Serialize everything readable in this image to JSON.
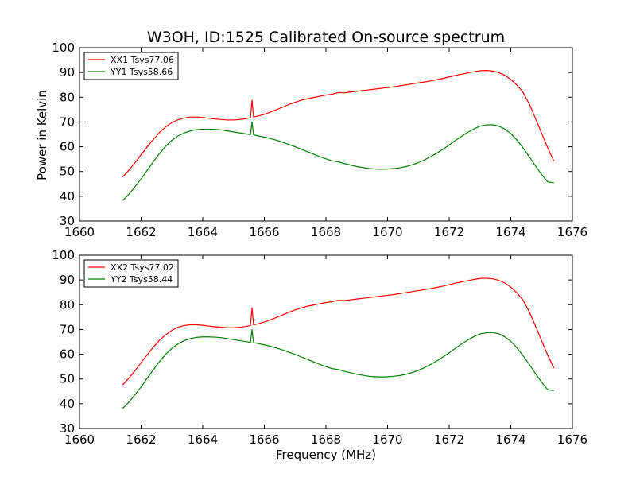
{
  "chart_data": [
    {
      "type": "line",
      "title": "W3OH, ID:1525 Calibrated On-source spectrum",
      "xlabel": "",
      "ylabel": "Power in Kelvin",
      "xlim": [
        1660,
        1676
      ],
      "ylim": [
        30,
        100
      ],
      "xticks": [
        1660,
        1662,
        1664,
        1666,
        1668,
        1670,
        1672,
        1674,
        1676
      ],
      "yticks": [
        30,
        40,
        50,
        60,
        70,
        80,
        90,
        100
      ],
      "legend_position": "top-left",
      "grid": false,
      "series": [
        {
          "name": "XX1 Tsys77.06",
          "color": "#ff0000",
          "x": [
            1661.4,
            1661.6,
            1661.8,
            1662.0,
            1662.2,
            1662.4,
            1662.6,
            1662.8,
            1663.0,
            1663.2,
            1663.4,
            1663.6,
            1663.8,
            1664.0,
            1664.2,
            1664.4,
            1664.6,
            1664.8,
            1665.0,
            1665.2,
            1665.4,
            1665.55,
            1665.6,
            1665.65,
            1665.8,
            1666.0,
            1666.2,
            1666.4,
            1666.6,
            1666.8,
            1667.0,
            1667.2,
            1667.4,
            1667.6,
            1667.8,
            1668.0,
            1668.2,
            1668.4,
            1668.6,
            1668.8,
            1669.0,
            1669.2,
            1669.4,
            1669.6,
            1669.8,
            1670.0,
            1670.2,
            1670.4,
            1670.6,
            1670.8,
            1671.0,
            1671.2,
            1671.4,
            1671.6,
            1671.8,
            1672.0,
            1672.2,
            1672.4,
            1672.6,
            1672.8,
            1673.0,
            1673.2,
            1673.4,
            1673.6,
            1673.8,
            1674.0,
            1674.2,
            1674.4,
            1674.6,
            1674.8,
            1675.0,
            1675.2,
            1675.4
          ],
          "y": [
            47.8,
            50.5,
            53.5,
            56.8,
            60.0,
            63.0,
            65.8,
            68.0,
            69.8,
            70.9,
            71.6,
            72.0,
            72.0,
            71.8,
            71.5,
            71.2,
            71.0,
            70.8,
            70.8,
            71.0,
            71.3,
            71.7,
            78.8,
            72.0,
            72.4,
            73.1,
            74.0,
            75.0,
            76.0,
            77.1,
            78.0,
            78.8,
            79.4,
            79.9,
            80.4,
            80.9,
            81.2,
            81.9,
            81.8,
            82.1,
            82.4,
            82.7,
            83.0,
            83.3,
            83.6,
            83.9,
            84.2,
            84.6,
            85.0,
            85.4,
            85.8,
            86.2,
            86.6,
            87.1,
            87.6,
            88.2,
            88.8,
            89.3,
            89.8,
            90.3,
            90.7,
            90.8,
            90.6,
            90.0,
            88.9,
            87.2,
            84.9,
            81.9,
            77.3,
            71.5,
            65.5,
            59.5,
            54.2
          ]
        },
        {
          "name": "YY1 Tsys58.66",
          "color": "#008000",
          "x": [
            1661.4,
            1661.6,
            1661.8,
            1662.0,
            1662.2,
            1662.4,
            1662.6,
            1662.8,
            1663.0,
            1663.2,
            1663.4,
            1663.6,
            1663.8,
            1664.0,
            1664.2,
            1664.4,
            1664.6,
            1664.8,
            1665.0,
            1665.2,
            1665.4,
            1665.55,
            1665.6,
            1665.65,
            1665.8,
            1666.0,
            1666.2,
            1666.4,
            1666.6,
            1666.8,
            1667.0,
            1667.2,
            1667.4,
            1667.6,
            1667.8,
            1668.0,
            1668.2,
            1668.4,
            1668.6,
            1668.8,
            1669.0,
            1669.2,
            1669.4,
            1669.6,
            1669.8,
            1670.0,
            1670.2,
            1670.4,
            1670.6,
            1670.8,
            1671.0,
            1671.2,
            1671.4,
            1671.6,
            1671.8,
            1672.0,
            1672.2,
            1672.4,
            1672.6,
            1672.8,
            1673.0,
            1673.2,
            1673.4,
            1673.6,
            1673.8,
            1674.0,
            1674.2,
            1674.4,
            1674.6,
            1674.8,
            1675.0,
            1675.2,
            1675.4
          ],
          "y": [
            38.3,
            40.8,
            43.8,
            47.0,
            50.5,
            54.0,
            57.3,
            60.2,
            62.6,
            64.4,
            65.6,
            66.4,
            66.9,
            67.1,
            67.1,
            67.0,
            66.8,
            66.4,
            66.0,
            65.6,
            65.2,
            64.9,
            70.0,
            64.8,
            64.4,
            63.9,
            63.3,
            62.6,
            61.8,
            60.9,
            60.0,
            59.0,
            58.0,
            57.0,
            56.0,
            55.1,
            54.3,
            53.9,
            53.2,
            52.6,
            52.0,
            51.6,
            51.2,
            51.0,
            50.9,
            51.0,
            51.2,
            51.5,
            52.0,
            52.7,
            53.6,
            54.7,
            56.0,
            57.4,
            59.0,
            60.7,
            62.5,
            64.2,
            65.8,
            67.2,
            68.3,
            68.8,
            68.9,
            68.4,
            67.2,
            65.3,
            62.7,
            59.5,
            56.0,
            52.3,
            48.8,
            45.8,
            45.5
          ]
        }
      ]
    },
    {
      "type": "line",
      "title": "",
      "xlabel": "Frequency (MHz)",
      "ylabel": "",
      "xlim": [
        1660,
        1676
      ],
      "ylim": [
        30,
        100
      ],
      "xticks": [
        1660,
        1662,
        1664,
        1666,
        1668,
        1670,
        1672,
        1674,
        1676
      ],
      "yticks": [
        30,
        40,
        50,
        60,
        70,
        80,
        90,
        100
      ],
      "legend_position": "top-left",
      "grid": false,
      "series": [
        {
          "name": "XX2 Tsys77.02",
          "color": "#ff0000",
          "x": [
            1661.4,
            1661.6,
            1661.8,
            1662.0,
            1662.2,
            1662.4,
            1662.6,
            1662.8,
            1663.0,
            1663.2,
            1663.4,
            1663.6,
            1663.8,
            1664.0,
            1664.2,
            1664.4,
            1664.6,
            1664.8,
            1665.0,
            1665.2,
            1665.4,
            1665.55,
            1665.6,
            1665.65,
            1665.8,
            1666.0,
            1666.2,
            1666.4,
            1666.6,
            1666.8,
            1667.0,
            1667.2,
            1667.4,
            1667.6,
            1667.8,
            1668.0,
            1668.2,
            1668.4,
            1668.6,
            1668.8,
            1669.0,
            1669.2,
            1669.4,
            1669.6,
            1669.8,
            1670.0,
            1670.2,
            1670.4,
            1670.6,
            1670.8,
            1671.0,
            1671.2,
            1671.4,
            1671.6,
            1671.8,
            1672.0,
            1672.2,
            1672.4,
            1672.6,
            1672.8,
            1673.0,
            1673.2,
            1673.4,
            1673.6,
            1673.8,
            1674.0,
            1674.2,
            1674.4,
            1674.6,
            1674.8,
            1675.0,
            1675.2,
            1675.4
          ],
          "y": [
            47.6,
            50.3,
            53.3,
            56.6,
            59.8,
            62.9,
            65.7,
            67.9,
            69.7,
            70.9,
            71.6,
            71.9,
            71.9,
            71.7,
            71.4,
            71.1,
            70.9,
            70.7,
            70.7,
            70.9,
            71.2,
            71.6,
            78.7,
            71.9,
            72.3,
            73.0,
            73.9,
            74.9,
            75.9,
            77.0,
            77.9,
            78.7,
            79.4,
            79.9,
            80.4,
            80.9,
            81.2,
            81.8,
            81.7,
            82.0,
            82.3,
            82.6,
            82.9,
            83.2,
            83.5,
            83.8,
            84.1,
            84.5,
            84.9,
            85.3,
            85.7,
            86.1,
            86.5,
            87.0,
            87.5,
            88.1,
            88.7,
            89.2,
            89.7,
            90.2,
            90.6,
            90.7,
            90.5,
            89.9,
            88.8,
            87.1,
            84.8,
            81.8,
            77.2,
            71.5,
            65.5,
            59.6,
            54.4
          ]
        },
        {
          "name": "YY2 Tsys58.44",
          "color": "#008000",
          "x": [
            1661.4,
            1661.6,
            1661.8,
            1662.0,
            1662.2,
            1662.4,
            1662.6,
            1662.8,
            1663.0,
            1663.2,
            1663.4,
            1663.6,
            1663.8,
            1664.0,
            1664.2,
            1664.4,
            1664.6,
            1664.8,
            1665.0,
            1665.2,
            1665.4,
            1665.55,
            1665.6,
            1665.65,
            1665.8,
            1666.0,
            1666.2,
            1666.4,
            1666.6,
            1666.8,
            1667.0,
            1667.2,
            1667.4,
            1667.6,
            1667.8,
            1668.0,
            1668.2,
            1668.4,
            1668.6,
            1668.8,
            1669.0,
            1669.2,
            1669.4,
            1669.6,
            1669.8,
            1670.0,
            1670.2,
            1670.4,
            1670.6,
            1670.8,
            1671.0,
            1671.2,
            1671.4,
            1671.6,
            1671.8,
            1672.0,
            1672.2,
            1672.4,
            1672.6,
            1672.8,
            1673.0,
            1673.2,
            1673.4,
            1673.6,
            1673.8,
            1674.0,
            1674.2,
            1674.4,
            1674.6,
            1674.8,
            1675.0,
            1675.2,
            1675.4
          ],
          "y": [
            38.1,
            40.6,
            43.6,
            46.8,
            50.3,
            53.8,
            57.1,
            60.0,
            62.4,
            64.2,
            65.5,
            66.3,
            66.8,
            67.0,
            67.0,
            66.9,
            66.7,
            66.3,
            65.9,
            65.5,
            65.1,
            64.8,
            69.9,
            64.7,
            64.3,
            63.8,
            63.2,
            62.5,
            61.7,
            60.8,
            59.9,
            58.9,
            57.9,
            56.9,
            55.9,
            55.0,
            54.2,
            53.8,
            53.1,
            52.5,
            51.9,
            51.5,
            51.1,
            50.9,
            50.8,
            50.9,
            51.1,
            51.4,
            51.9,
            52.6,
            53.5,
            54.6,
            55.9,
            57.3,
            58.9,
            60.6,
            62.4,
            64.1,
            65.7,
            67.1,
            68.2,
            68.7,
            68.8,
            68.3,
            67.1,
            65.2,
            62.6,
            59.4,
            55.9,
            52.2,
            48.7,
            45.7,
            45.3
          ]
        }
      ]
    }
  ]
}
